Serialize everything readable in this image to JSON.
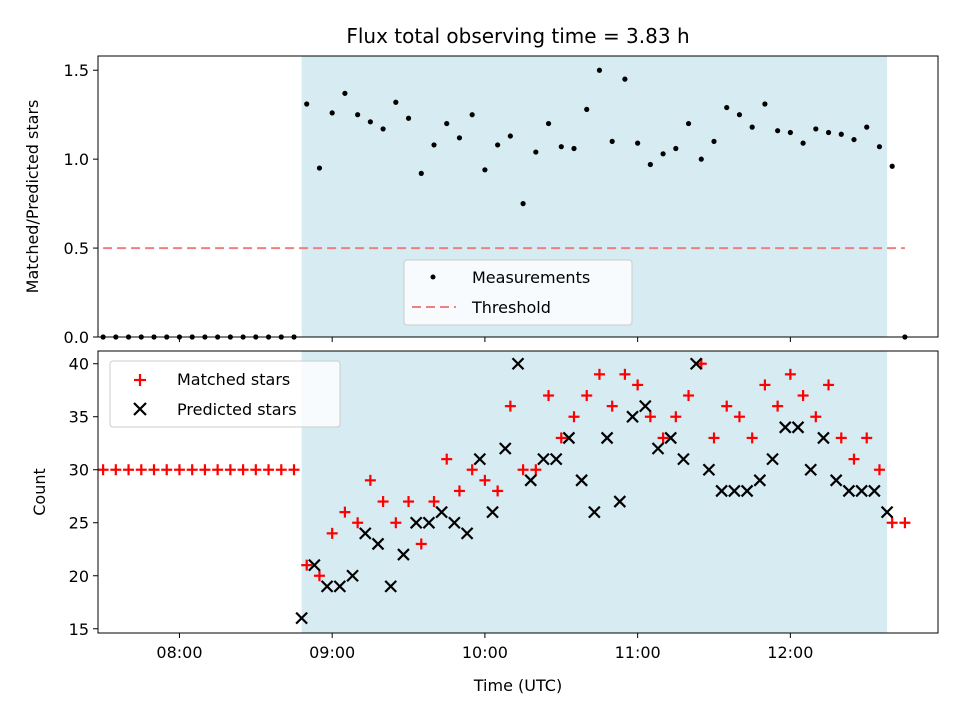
{
  "chart_data": [
    {
      "type": "scatter",
      "title": "Flux total observing time = 3.83 h",
      "xlabel": "",
      "ylabel": "Matched/Predicted stars",
      "xlim": [
        "07:28",
        "12:58"
      ],
      "ylim": [
        0,
        1.58
      ],
      "yticks": [
        0.0,
        0.5,
        1.0,
        1.5
      ],
      "ytick_labels": [
        "0.0",
        "0.5",
        "1.0",
        "1.5"
      ],
      "xticks": [
        "08:00",
        "09:00",
        "10:00",
        "11:00",
        "12:00"
      ],
      "shaded_region": {
        "start": "08:48",
        "end": "12:38",
        "color": "#add8e6"
      },
      "threshold": {
        "value": 0.5,
        "start": "07:30",
        "end": "12:45",
        "color": "#f08080"
      },
      "legend": {
        "placement": "lower-center",
        "entries": [
          "Measurements",
          "Threshold"
        ]
      },
      "series": [
        {
          "name": "Measurements",
          "color": "#000000",
          "x": [
            "07:30",
            "07:35",
            "07:40",
            "07:45",
            "07:50",
            "07:55",
            "08:00",
            "08:05",
            "08:10",
            "08:15",
            "08:20",
            "08:25",
            "08:30",
            "08:35",
            "08:40",
            "08:45",
            "08:50",
            "08:55",
            "09:00",
            "09:05",
            "09:10",
            "09:15",
            "09:20",
            "09:25",
            "09:30",
            "09:35",
            "09:40",
            "09:45",
            "09:50",
            "09:55",
            "10:00",
            "10:05",
            "10:10",
            "10:15",
            "10:20",
            "10:25",
            "10:30",
            "10:35",
            "10:40",
            "10:45",
            "10:50",
            "10:55",
            "11:00",
            "11:05",
            "11:10",
            "11:15",
            "11:20",
            "11:25",
            "11:30",
            "11:35",
            "11:40",
            "11:45",
            "11:50",
            "11:55",
            "12:00",
            "12:05",
            "12:10",
            "12:15",
            "12:20",
            "12:25",
            "12:30",
            "12:35",
            "12:40",
            "12:45"
          ],
          "y": [
            0,
            0,
            0,
            0,
            0,
            0,
            0,
            0,
            0,
            0,
            0,
            0,
            0,
            0,
            0,
            0,
            1.31,
            0.95,
            1.26,
            1.37,
            1.25,
            1.21,
            1.17,
            1.32,
            1.23,
            0.92,
            1.08,
            1.2,
            1.12,
            1.25,
            0.94,
            1.08,
            1.13,
            0.75,
            1.04,
            1.2,
            1.07,
            1.06,
            1.28,
            1.5,
            1.1,
            1.45,
            1.09,
            0.97,
            1.03,
            1.06,
            1.2,
            1.0,
            1.1,
            1.29,
            1.25,
            1.18,
            1.31,
            1.16,
            1.15,
            1.09,
            1.17,
            1.15,
            1.14,
            1.11,
            1.18,
            1.07,
            0.96,
            0
          ]
        }
      ]
    },
    {
      "type": "scatter",
      "title": "",
      "xlabel": "Time (UTC)",
      "ylabel": "Count",
      "xlim": [
        "07:28",
        "12:58"
      ],
      "ylim": [
        14.6,
        41.2
      ],
      "yticks": [
        15,
        20,
        25,
        30,
        35,
        40
      ],
      "ytick_labels": [
        "15",
        "20",
        "25",
        "30",
        "35",
        "40"
      ],
      "xticks": [
        "08:00",
        "09:00",
        "10:00",
        "11:00",
        "12:00"
      ],
      "xtick_labels": [
        "08:00",
        "09:00",
        "10:00",
        "11:00",
        "12:00"
      ],
      "shaded_region": {
        "start": "08:48",
        "end": "12:38",
        "color": "#add8e6"
      },
      "legend": {
        "placement": "top-left",
        "entries": [
          "Matched stars",
          "Predicted stars"
        ]
      },
      "series": [
        {
          "name": "Matched stars",
          "marker": "plus",
          "color": "#ff0000",
          "x": [
            "07:30",
            "07:35",
            "07:40",
            "07:45",
            "07:50",
            "07:55",
            "08:00",
            "08:05",
            "08:10",
            "08:15",
            "08:20",
            "08:25",
            "08:30",
            "08:35",
            "08:40",
            "08:45",
            "08:50",
            "08:55",
            "09:00",
            "09:05",
            "09:10",
            "09:15",
            "09:20",
            "09:25",
            "09:30",
            "09:35",
            "09:40",
            "09:45",
            "09:50",
            "09:55",
            "10:00",
            "10:05",
            "10:10",
            "10:15",
            "10:20",
            "10:25",
            "10:30",
            "10:35",
            "10:40",
            "10:45",
            "10:50",
            "10:55",
            "11:00",
            "11:05",
            "11:10",
            "11:15",
            "11:20",
            "11:25",
            "11:30",
            "11:35",
            "11:40",
            "11:45",
            "11:50",
            "11:55",
            "12:00",
            "12:05",
            "12:10",
            "12:15",
            "12:20",
            "12:25",
            "12:30",
            "12:35",
            "12:40",
            "12:45"
          ],
          "y": [
            30,
            30,
            30,
            30,
            30,
            30,
            30,
            30,
            30,
            30,
            30,
            30,
            30,
            30,
            30,
            30,
            21,
            20,
            24,
            26,
            25,
            29,
            27,
            25,
            27,
            23,
            27,
            31,
            28,
            30,
            29,
            28,
            36,
            30,
            30,
            37,
            33,
            35,
            37,
            39,
            36,
            39,
            38,
            35,
            33,
            35,
            37,
            40,
            33,
            36,
            35,
            33,
            38,
            36,
            39,
            37,
            35,
            38,
            33,
            31,
            33,
            30,
            25,
            25
          ]
        },
        {
          "name": "Predicted stars",
          "marker": "x",
          "color": "#000000",
          "x": [
            "08:48",
            "08:53",
            "08:58",
            "09:03",
            "09:08",
            "09:13",
            "09:18",
            "09:23",
            "09:28",
            "09:33",
            "09:38",
            "09:43",
            "09:48",
            "09:53",
            "09:58",
            "10:03",
            "10:08",
            "10:13",
            "10:18",
            "10:23",
            "10:28",
            "10:33",
            "10:38",
            "10:43",
            "10:48",
            "10:53",
            "10:58",
            "11:03",
            "11:08",
            "11:13",
            "11:18",
            "11:23",
            "11:28",
            "11:33",
            "11:38",
            "11:43",
            "11:48",
            "11:53",
            "11:58",
            "12:03",
            "12:08",
            "12:13",
            "12:18",
            "12:23",
            "12:28",
            "12:33",
            "12:38"
          ],
          "y": [
            16,
            21,
            19,
            19,
            20,
            24,
            23,
            19,
            22,
            25,
            25,
            26,
            25,
            24,
            31,
            26,
            32,
            40,
            29,
            31,
            31,
            33,
            29,
            26,
            33,
            27,
            35,
            36,
            32,
            33,
            31,
            40,
            30,
            28,
            28,
            28,
            29,
            31,
            34,
            34,
            30,
            33,
            29,
            28,
            28,
            28,
            26
          ]
        }
      ]
    }
  ]
}
